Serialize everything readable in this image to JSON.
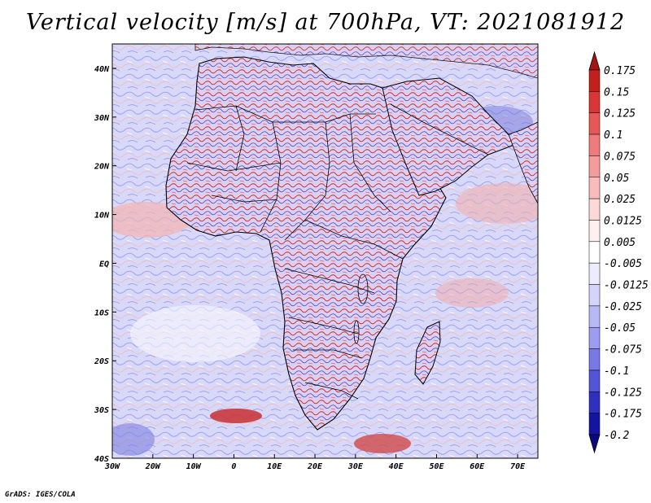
{
  "title": "Vertical velocity [m/s] at 700hPa, VT: 2021081912",
  "credit": "GrADS: IGES/COLA",
  "map": {
    "lon_range": [
      -30,
      75
    ],
    "lat_range": [
      -40,
      45
    ],
    "x_ticks": [
      "30W",
      "20W",
      "10W",
      "0",
      "10E",
      "20E",
      "30E",
      "40E",
      "50E",
      "60E",
      "70E"
    ],
    "y_ticks": [
      "40N",
      "30N",
      "20N",
      "10N",
      "EQ",
      "10S",
      "20S",
      "30S",
      "40S"
    ],
    "field": "vertical velocity",
    "units": "m/s",
    "level": "700hPa"
  },
  "colorbar": {
    "levels": [
      "0.175",
      "0.15",
      "0.125",
      "0.1",
      "0.075",
      "0.05",
      "0.025",
      "0.0125",
      "0.005",
      "-0.005",
      "-0.0125",
      "-0.025",
      "-0.05",
      "-0.075",
      "-0.1",
      "-0.125",
      "-0.175",
      "-0.2"
    ],
    "colors": [
      "#a31414",
      "#c41f1f",
      "#d93636",
      "#e65858",
      "#ee7c7c",
      "#f39c9c",
      "#f8bcbc",
      "#fcd8d8",
      "#fef0f0",
      "#ffffff",
      "#ececfe",
      "#d4d4fb",
      "#b8b8f6",
      "#9c9cf0",
      "#7878e6",
      "#5454d8",
      "#3030c0",
      "#1414a0",
      "#0a0a80"
    ]
  }
}
